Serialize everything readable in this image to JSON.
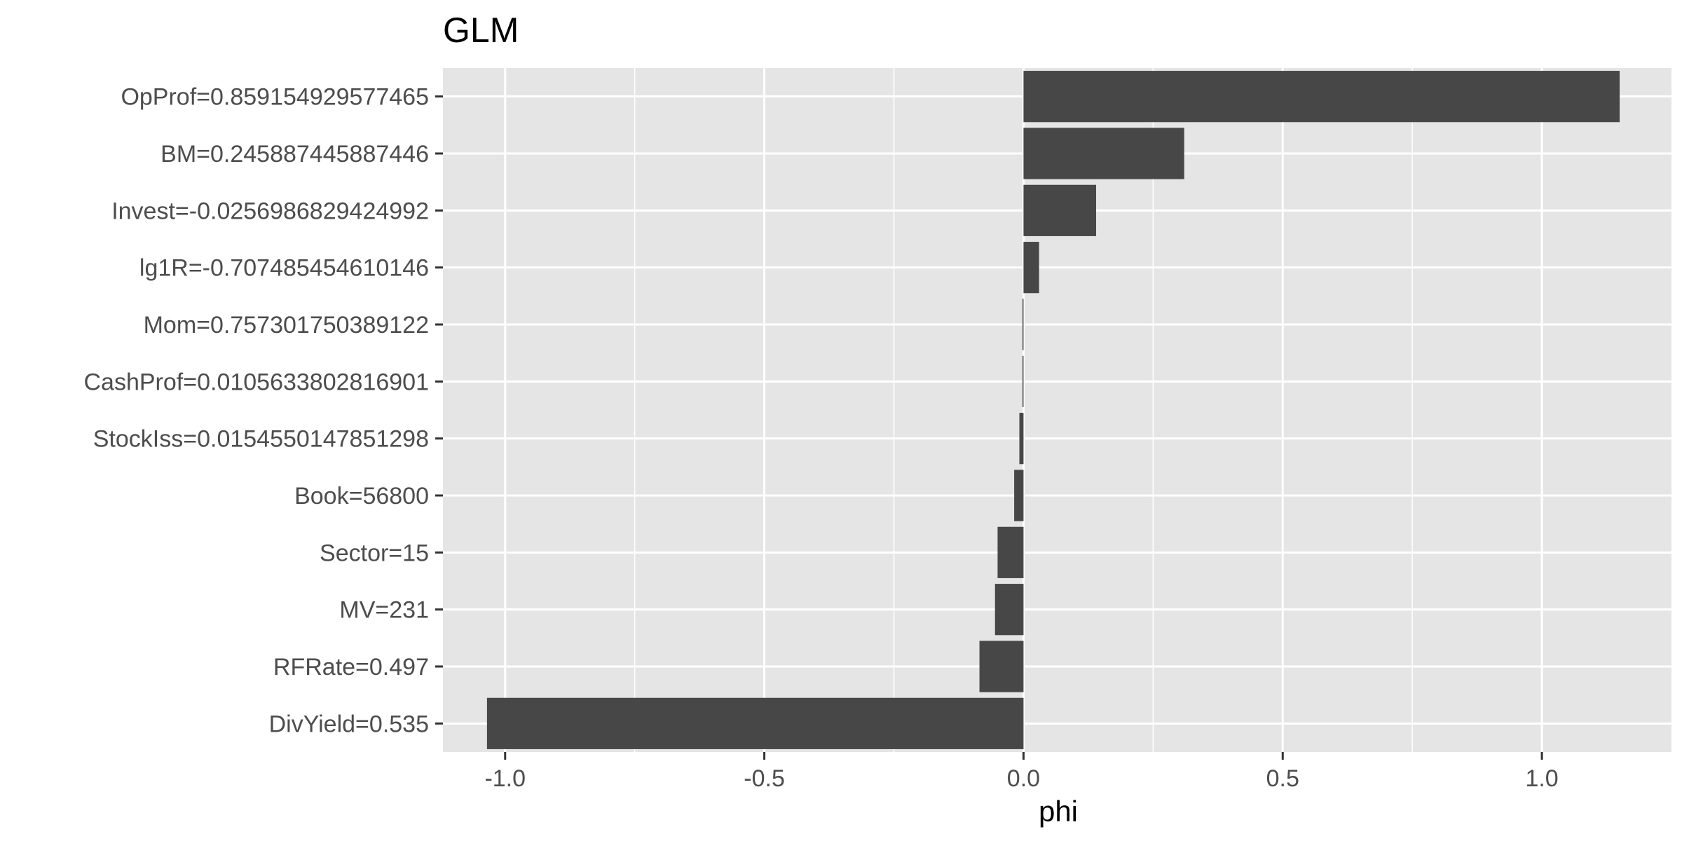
{
  "chart_data": {
    "type": "bar",
    "orientation": "horizontal",
    "title": "GLM",
    "xlabel": "phi",
    "ylabel": "",
    "xlim": [
      -1.12,
      1.25
    ],
    "xticks": [
      -1.0,
      -0.5,
      0.0,
      0.5,
      1.0
    ],
    "xtick_labels": [
      "-1.0",
      "-0.5",
      "0.0",
      "0.5",
      "1.0"
    ],
    "grid": true,
    "categories": [
      "OpProf=0.859154929577465",
      "BM=0.245887445887446",
      "Invest=-0.0256986829424992",
      "lg1R=-0.707485454610146",
      "Mom=0.757301750389122",
      "CashProf=0.0105633802816901",
      "StockIss=0.0154550147851298",
      "Book=56800",
      "Sector=15",
      "MV=231",
      "RFRate=0.497",
      "DivYield=0.535"
    ],
    "values": [
      1.15,
      0.31,
      0.14,
      0.03,
      -0.002,
      -0.002,
      -0.008,
      -0.018,
      -0.05,
      -0.055,
      -0.085,
      -1.035
    ],
    "colors": {
      "panel": "#e5e5e5",
      "grid_major": "#ffffff",
      "bar": "#474747",
      "tick_text": "#4d4d4d",
      "tick_mark": "#333333"
    }
  }
}
